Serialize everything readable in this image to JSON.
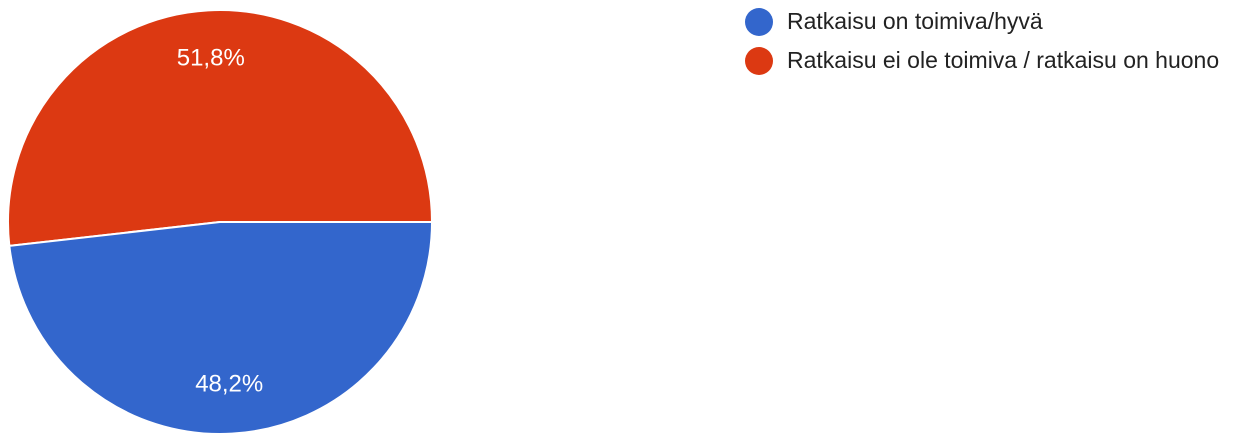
{
  "chart_data": {
    "type": "pie",
    "title": "",
    "start_angle_deg": 0,
    "direction": "counterclockwise-from-right",
    "legend_position": "right",
    "slices": [
      {
        "label": "Ratkaisu ei ole toimiva / ratkaisu on huono",
        "value": 51.8,
        "display": "51,8%",
        "color": "#dc3912"
      },
      {
        "label": "Ratkaisu on toimiva/hyvä",
        "value": 48.2,
        "display": "48,2%",
        "color": "#3366cc"
      }
    ],
    "legend": [
      {
        "label": "Ratkaisu on toimiva/hyvä",
        "color": "#3366cc"
      },
      {
        "label": "Ratkaisu ei ole toimiva / ratkaisu on huono",
        "color": "#dc3912"
      }
    ]
  }
}
